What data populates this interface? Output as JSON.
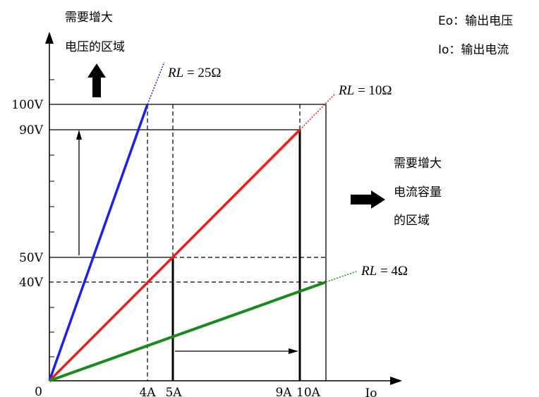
{
  "legend": {
    "eo": "Eo：输出电压",
    "io": "Io：输出电流"
  },
  "region_voltage": {
    "line1": "需要增大",
    "line2": "电压的区域"
  },
  "region_current": {
    "line1": "需要增大",
    "line2": "电流容量",
    "line3": "的区域"
  },
  "axes": {
    "origin": "0",
    "x_label": "Io",
    "y_ticks": [
      "100V",
      "90V",
      "50V",
      "40V"
    ],
    "x_ticks": [
      "4A",
      "5A",
      "9A",
      "10A"
    ]
  },
  "lines": [
    {
      "rl_var": "RL",
      "rl_eq": " = 25Ω",
      "color": "#1f1fe6"
    },
    {
      "rl_var": "RL",
      "rl_eq": " = 10Ω",
      "color": "#ee1c1c"
    },
    {
      "rl_var": "RL",
      "rl_eq": " = 4Ω",
      "color": "#1a8a1a"
    }
  ]
}
